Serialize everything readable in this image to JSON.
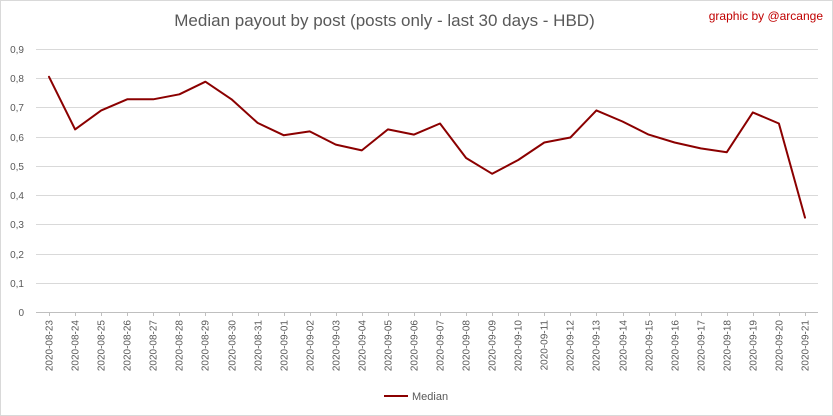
{
  "chart_data": {
    "type": "line",
    "title": "Median payout by post (posts only - last 30 days - HBD)",
    "credit": "graphic by @arcange",
    "xlabel": "",
    "ylabel": "",
    "ylim": [
      0,
      0.9
    ],
    "yticks": [
      "0",
      "0,1",
      "0,2",
      "0,3",
      "0,4",
      "0,5",
      "0,6",
      "0,7",
      "0,8",
      "0,9"
    ],
    "grid": "horizontal",
    "legend_position": "bottom",
    "categories": [
      "2020-08-23",
      "2020-08-24",
      "2020-08-25",
      "2020-08-26",
      "2020-08-27",
      "2020-08-28",
      "2020-08-29",
      "2020-08-30",
      "2020-08-31",
      "2020-09-01",
      "2020-09-02",
      "2020-09-03",
      "2020-09-04",
      "2020-09-05",
      "2020-09-06",
      "2020-09-07",
      "2020-09-08",
      "2020-09-09",
      "2020-09-10",
      "2020-09-11",
      "2020-09-12",
      "2020-09-13",
      "2020-09-14",
      "2020-09-15",
      "2020-09-16",
      "2020-09-17",
      "2020-09-18",
      "2020-09-19",
      "2020-09-20",
      "2020-09-21"
    ],
    "series": [
      {
        "name": "Median",
        "color": "#8b0000",
        "values": [
          0.805,
          0.625,
          0.69,
          0.728,
          0.728,
          0.745,
          0.788,
          0.728,
          0.647,
          0.605,
          0.618,
          0.573,
          0.553,
          0.625,
          0.607,
          0.645,
          0.527,
          0.473,
          0.52,
          0.58,
          0.597,
          0.69,
          0.652,
          0.607,
          0.58,
          0.56,
          0.547,
          0.683,
          0.645,
          0.323
        ]
      }
    ]
  }
}
